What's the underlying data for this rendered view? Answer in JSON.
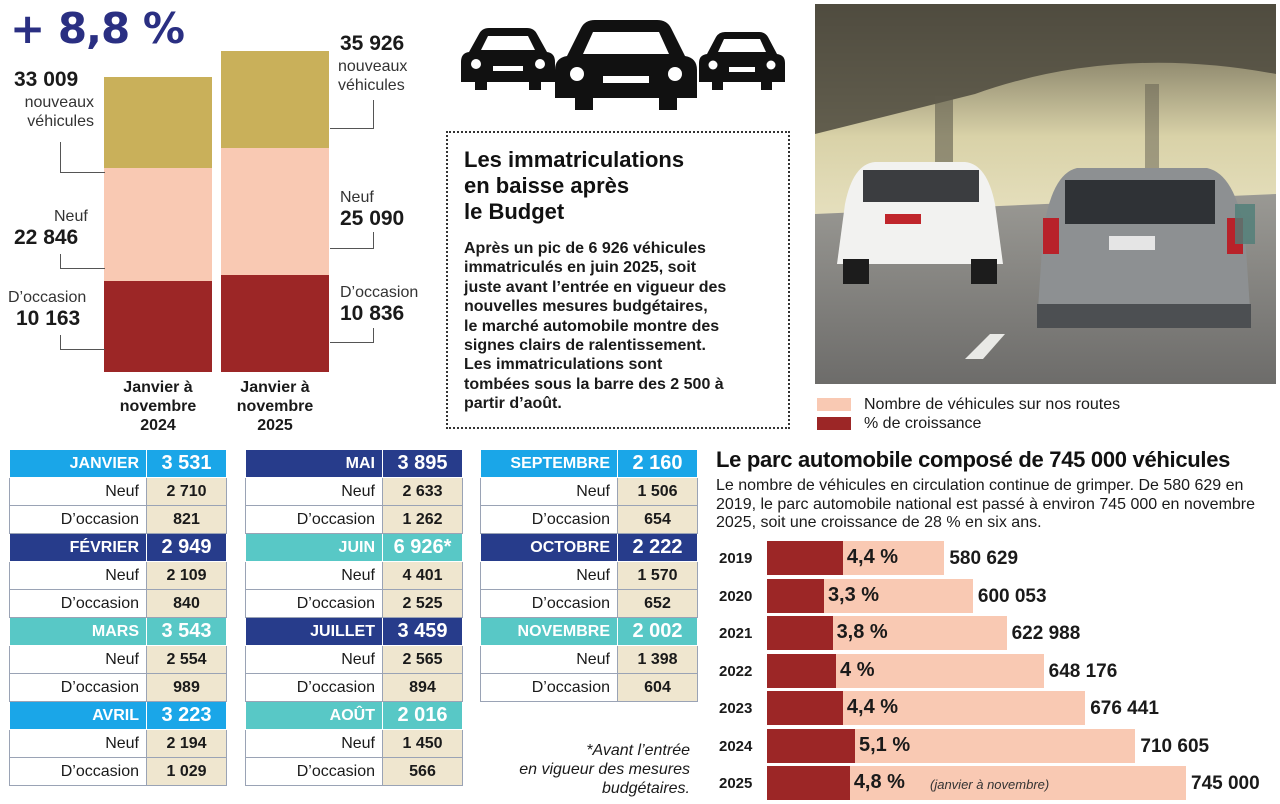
{
  "header": {
    "growth": "+ 8,8 %"
  },
  "stacked": {
    "bar2024": {
      "total": "33 009",
      "total_label_1": "nouveaux",
      "total_label_2": "véhicules",
      "neuf_label": "Neuf",
      "neuf": "22 846",
      "occ_label": "D’occasion",
      "occ": "10 163",
      "caption": [
        "Janvier à",
        "novembre",
        "2024"
      ]
    },
    "bar2025": {
      "total": "35 926",
      "total_label_1": "nouveaux",
      "total_label_2": "véhicules",
      "neuf_label": "Neuf",
      "neuf": "25 090",
      "occ_label": "D’occasion",
      "occ": "10 836",
      "caption": [
        "Janvier à",
        "novembre",
        "2025"
      ]
    }
  },
  "card": {
    "title": [
      "Les immatriculations",
      "en baisse après",
      "le Budget"
    ],
    "body": [
      "Après un pic de 6 926 véhicules",
      "immatriculés en juin 2025, soit",
      "juste avant l’entrée en vigueur des",
      "nouvelles mesures budgétaires,",
      "le marché automobile montre des",
      "signes clairs de ralentissement.",
      "Les immatriculations sont",
      "tombées sous la barre des 2 500 à",
      "partir d’août."
    ]
  },
  "legend": {
    "vehicles": "Nombre de véhicules sur nos routes",
    "growth": "% de croissance"
  },
  "months": {
    "sub_neuf": "Neuf",
    "sub_occ": "D’occasion",
    "col1": [
      {
        "name": "JANVIER",
        "total": "3 531",
        "neuf": "2 710",
        "occ": "821"
      },
      {
        "name": "FÉVRIER",
        "total": "2 949",
        "neuf": "2 109",
        "occ": "840"
      },
      {
        "name": "MARS",
        "total": "3 543",
        "neuf": "2 554",
        "occ": "989"
      },
      {
        "name": "AVRIL",
        "total": "3 223",
        "neuf": "2 194",
        "occ": "1 029"
      }
    ],
    "col2": [
      {
        "name": "MAI",
        "total": "3 895",
        "neuf": "2 633",
        "occ": "1 262"
      },
      {
        "name": "JUIN",
        "total": "6 926*",
        "neuf": "4 401",
        "occ": "2 525"
      },
      {
        "name": "JUILLET",
        "total": "3 459",
        "neuf": "2 565",
        "occ": "894"
      },
      {
        "name": "AOÛT",
        "total": "2 016",
        "neuf": "1 450",
        "occ": "566"
      }
    ],
    "col3": [
      {
        "name": "SEPTEMBRE",
        "total": "2 160",
        "neuf": "1 506",
        "occ": "654"
      },
      {
        "name": "OCTOBRE",
        "total": "2 222",
        "neuf": "1 570",
        "occ": "652"
      },
      {
        "name": "NOVEMBRE",
        "total": "2 002",
        "neuf": "1 398",
        "occ": "604"
      }
    ],
    "footnote": [
      "*Avant l’entrée",
      "en vigueur des mesures",
      "budgétaires."
    ]
  },
  "colors": {
    "mustard": "#c9b05a",
    "peach": "#f9c9b3",
    "dark_red": "#9c2626",
    "month_blue": "#1aa6e8",
    "month_navy": "#273c8b",
    "month_teal": "#58c8c6",
    "value_bg": "#efe6cf",
    "growth_text": "#2a2f82"
  },
  "chart_data": [
    {
      "type": "bar",
      "title": "",
      "categories": [
        "Janvier à novembre 2024",
        "Janvier à novembre 2025"
      ],
      "series": [
        {
          "name": "D’occasion",
          "values": [
            10163,
            10836
          ]
        },
        {
          "name": "Neuf",
          "values": [
            22846,
            25090
          ]
        },
        {
          "name": "Total nouveaux véhicules",
          "values": [
            33009,
            35926
          ]
        }
      ],
      "annotation": "+ 8,8 %",
      "ylim": [
        0,
        36000
      ]
    },
    {
      "type": "bar",
      "title": "Le parc automobile composé de 745 000 véhicules",
      "description": "Le nombre de véhicules en circulation continue de grimper. De 580 629 en 2019, le parc automobile national est passé à environ 745 000 en novembre 2025, soit une croissance de 28 % en six ans.",
      "categories": [
        "2019",
        "2020",
        "2021",
        "2022",
        "2023",
        "2024",
        "2025"
      ],
      "series": [
        {
          "name": "Nombre de véhicules sur nos routes",
          "values": [
            580629,
            600053,
            622988,
            648176,
            676441,
            710605,
            745000
          ],
          "labels": [
            "580 629",
            "600 053",
            "622 988",
            "648 176",
            "676 441",
            "710 605",
            "745 000"
          ]
        },
        {
          "name": "% de croissance",
          "values": [
            4.4,
            3.3,
            3.8,
            4,
            4.4,
            5.1,
            4.8
          ],
          "labels": [
            "4,4 %",
            "3,3 %",
            "3,8 %",
            "4 %",
            "4,4 %",
            "5,1 %",
            "4,8 %"
          ]
        }
      ],
      "annotation_2025": "(janvier à novembre)"
    }
  ]
}
